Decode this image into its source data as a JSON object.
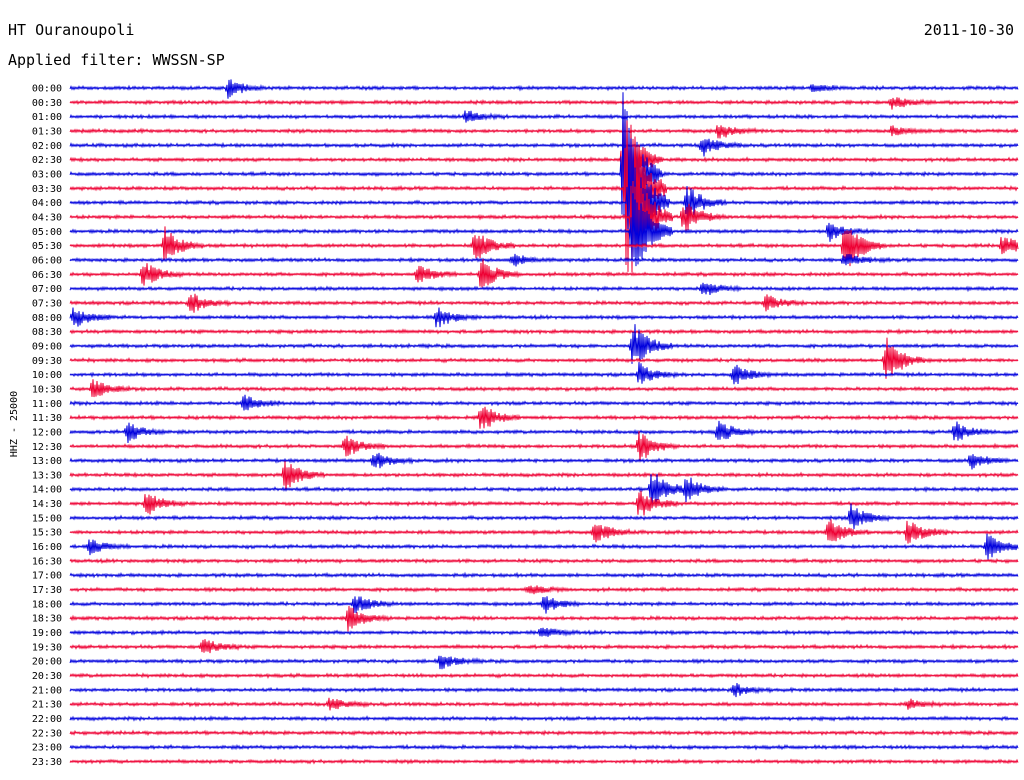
{
  "header": {
    "station": "HT Ouranoupoli",
    "date": "2011-10-30",
    "filter_prefix": "Applied filter:",
    "filter": "WWSSN-SP"
  },
  "colors": {
    "even_trace": "#0000dd",
    "odd_trace": "#ee0033",
    "text": "#000000",
    "background": "#ffffff"
  },
  "chart_data": {
    "type": "line",
    "ylabel": "HHZ - 25000",
    "row_interval_minutes": 30,
    "rows": [
      "00:00",
      "00:30",
      "01:00",
      "01:30",
      "02:00",
      "02:30",
      "03:00",
      "03:30",
      "04:00",
      "04:30",
      "05:00",
      "05:30",
      "06:00",
      "06:30",
      "07:00",
      "07:30",
      "08:00",
      "08:30",
      "09:00",
      "09:30",
      "10:00",
      "10:30",
      "11:00",
      "11:30",
      "12:00",
      "12:30",
      "13:00",
      "13:30",
      "14:00",
      "14:30",
      "15:00",
      "15:30",
      "16:00",
      "16:30",
      "17:00",
      "17:30",
      "18:00",
      "18:30",
      "19:00",
      "19:30",
      "20:00",
      "20:30",
      "21:00",
      "21:30",
      "22:00",
      "22:30",
      "23:00",
      "23:30"
    ],
    "grid": false,
    "legend": "none",
    "events": [
      {
        "row": 0,
        "minute": 5.0,
        "amp": 0.7
      },
      {
        "row": 0,
        "minute": 23.5,
        "amp": 0.35
      },
      {
        "row": 1,
        "minute": 26.0,
        "amp": 0.5
      },
      {
        "row": 2,
        "minute": 12.5,
        "amp": 0.5
      },
      {
        "row": 3,
        "minute": 20.5,
        "amp": 0.6
      },
      {
        "row": 3,
        "minute": 26.0,
        "amp": 0.35
      },
      {
        "row": 4,
        "minute": 20.0,
        "amp": 0.8
      },
      {
        "row": 5,
        "minute": 17.5,
        "amp": 4.0
      },
      {
        "row": 6,
        "minute": 17.5,
        "amp": 6.0
      },
      {
        "row": 7,
        "minute": 17.6,
        "amp": 7.0
      },
      {
        "row": 8,
        "minute": 17.7,
        "amp": 6.0
      },
      {
        "row": 8,
        "minute": 19.5,
        "amp": 1.4
      },
      {
        "row": 9,
        "minute": 17.8,
        "amp": 5.0
      },
      {
        "row": 9,
        "minute": 19.4,
        "amp": 1.3
      },
      {
        "row": 10,
        "minute": 17.8,
        "amp": 4.0
      },
      {
        "row": 10,
        "minute": 24.0,
        "amp": 0.8
      },
      {
        "row": 11,
        "minute": 3.0,
        "amp": 1.4
      },
      {
        "row": 11,
        "minute": 12.8,
        "amp": 1.2
      },
      {
        "row": 11,
        "minute": 24.5,
        "amp": 2.2
      },
      {
        "row": 11,
        "minute": 29.5,
        "amp": 0.8
      },
      {
        "row": 12,
        "minute": 14.0,
        "amp": 0.5
      },
      {
        "row": 12,
        "minute": 24.5,
        "amp": 0.5
      },
      {
        "row": 13,
        "minute": 2.3,
        "amp": 1.0
      },
      {
        "row": 13,
        "minute": 11.0,
        "amp": 0.7
      },
      {
        "row": 13,
        "minute": 13.0,
        "amp": 1.2
      },
      {
        "row": 14,
        "minute": 20.0,
        "amp": 0.6
      },
      {
        "row": 15,
        "minute": 3.8,
        "amp": 0.8
      },
      {
        "row": 15,
        "minute": 22.0,
        "amp": 0.6
      },
      {
        "row": 16,
        "minute": 0.1,
        "amp": 0.8
      },
      {
        "row": 16,
        "minute": 11.6,
        "amp": 0.8
      },
      {
        "row": 18,
        "minute": 17.8,
        "amp": 1.8
      },
      {
        "row": 19,
        "minute": 25.8,
        "amp": 1.8
      },
      {
        "row": 20,
        "minute": 18.0,
        "amp": 0.8
      },
      {
        "row": 20,
        "minute": 21.0,
        "amp": 0.8
      },
      {
        "row": 21,
        "minute": 0.7,
        "amp": 0.8
      },
      {
        "row": 22,
        "minute": 5.5,
        "amp": 0.6
      },
      {
        "row": 23,
        "minute": 13.0,
        "amp": 1.0
      },
      {
        "row": 24,
        "minute": 1.8,
        "amp": 0.8
      },
      {
        "row": 24,
        "minute": 20.5,
        "amp": 0.8
      },
      {
        "row": 24,
        "minute": 28.0,
        "amp": 0.8
      },
      {
        "row": 25,
        "minute": 8.7,
        "amp": 0.8
      },
      {
        "row": 25,
        "minute": 18.0,
        "amp": 1.2
      },
      {
        "row": 26,
        "minute": 9.6,
        "amp": 0.7
      },
      {
        "row": 26,
        "minute": 28.5,
        "amp": 0.6
      },
      {
        "row": 27,
        "minute": 6.8,
        "amp": 1.2
      },
      {
        "row": 28,
        "minute": 18.4,
        "amp": 1.5
      },
      {
        "row": 28,
        "minute": 19.5,
        "amp": 0.9
      },
      {
        "row": 29,
        "minute": 2.4,
        "amp": 0.9
      },
      {
        "row": 29,
        "minute": 18.0,
        "amp": 1.1
      },
      {
        "row": 30,
        "minute": 24.7,
        "amp": 1.0
      },
      {
        "row": 31,
        "minute": 16.6,
        "amp": 0.8
      },
      {
        "row": 31,
        "minute": 24.0,
        "amp": 1.0
      },
      {
        "row": 31,
        "minute": 26.5,
        "amp": 1.0
      },
      {
        "row": 32,
        "minute": 0.6,
        "amp": 0.6
      },
      {
        "row": 32,
        "minute": 29.0,
        "amp": 1.0
      },
      {
        "row": 35,
        "minute": 14.5,
        "amp": 0.4
      },
      {
        "row": 36,
        "minute": 9.0,
        "amp": 0.7
      },
      {
        "row": 36,
        "minute": 15.0,
        "amp": 0.7
      },
      {
        "row": 37,
        "minute": 8.8,
        "amp": 0.9
      },
      {
        "row": 38,
        "minute": 14.9,
        "amp": 0.4
      },
      {
        "row": 39,
        "minute": 4.2,
        "amp": 0.7
      },
      {
        "row": 40,
        "minute": 11.7,
        "amp": 0.6
      },
      {
        "row": 42,
        "minute": 21.0,
        "amp": 0.5
      },
      {
        "row": 43,
        "minute": 8.2,
        "amp": 0.5
      },
      {
        "row": 43,
        "minute": 26.5,
        "amp": 0.4
      }
    ]
  }
}
